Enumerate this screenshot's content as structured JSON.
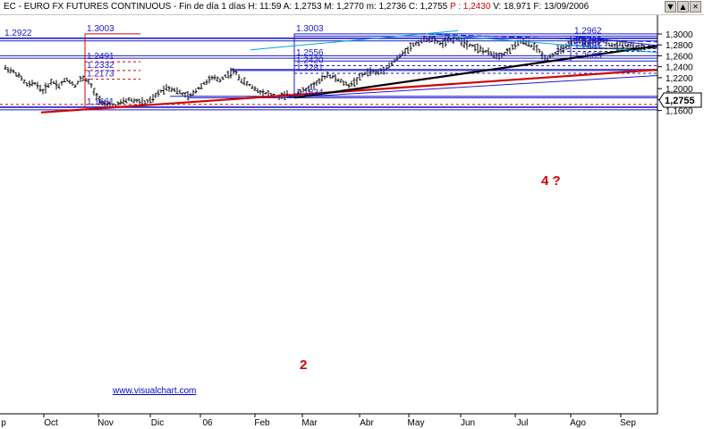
{
  "title": {
    "symbol": "EC - EURO FX FUTURES CONTINUOUS",
    "session": "Fin de día 1 días",
    "high": "H: 11:59",
    "open": "A: 1,2753",
    "max": "M: 1,2770",
    "min": "m: 1,2736",
    "close": "C: 1,2755",
    "prev": "P : 1,2430",
    "volume": "V: 18.971",
    "date": "F: 13/09/2006"
  },
  "window_buttons": [
    "down-arrow",
    "up-arrow",
    "close"
  ],
  "watermark": "www.visualchart.com",
  "chart_data": {
    "type": "candlestick",
    "title": "EC - EURO FX FUTURES CONTINUOUS",
    "x_tick_labels": [
      "p",
      "Oct",
      "Nov",
      "Dic",
      "06",
      "Feb",
      "Mar",
      "Abr",
      "May",
      "Jun",
      "Jul",
      "Ago",
      "Sep"
    ],
    "y_tick_labels": [
      "1,3000",
      "1,2800",
      "1,2600",
      "1,2400",
      "1,2200",
      "1,2000",
      "1,1800",
      "1,1600"
    ],
    "ylim": [
      1.155,
      1.3065
    ],
    "current_price": "1,2755",
    "price_levels": [
      "1.3003",
      "1.2922",
      "1.2491",
      "1.2332",
      "1.2173",
      "1.1661",
      "1.3003",
      "1.2556",
      "1.2420",
      "1.2281",
      "1.1834",
      "1.2962",
      "1.2786",
      "1.2732",
      "1.2681",
      "1.2505"
    ],
    "annotations": [
      "2",
      "4 ?"
    ],
    "trendlines": [
      {
        "color": "#d40000",
        "from": [
          "Sep",
          1.1565
        ],
        "to": [
          "Sep",
          1.2345
        ]
      },
      {
        "color": "#000000",
        "from": [
          "Feb",
          1.1834
        ],
        "to": [
          "Sep",
          1.278
        ]
      },
      {
        "color": "#0000cc",
        "from": [
          "Feb",
          1.1834
        ],
        "to": [
          "Sep",
          1.223
        ]
      },
      {
        "color": "#00aadd",
        "from": [
          "Ene",
          1.271
        ],
        "to": [
          "May",
          1.306
        ]
      }
    ],
    "grid": false
  }
}
